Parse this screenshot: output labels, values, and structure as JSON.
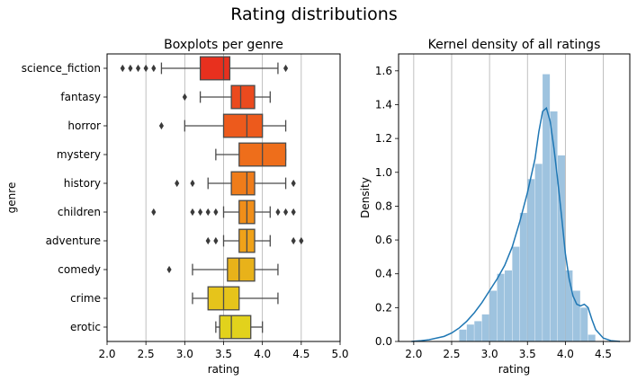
{
  "figure": {
    "title": "Rating distributions"
  },
  "chart_data": [
    {
      "type": "box",
      "title": "Boxplots per genre",
      "xlabel": "rating",
      "ylabel": "genre",
      "xlim": [
        2.0,
        5.0
      ],
      "xticks": [
        "2.0",
        "2.5",
        "3.0",
        "3.5",
        "4.0",
        "4.5",
        "5.0"
      ],
      "xtick_values": [
        2.0,
        2.5,
        3.0,
        3.5,
        4.0,
        4.5,
        5.0
      ],
      "grid": "vertical",
      "categories": [
        "science_fiction",
        "fantasy",
        "horror",
        "mystery",
        "history",
        "children",
        "adventure",
        "comedy",
        "crime",
        "erotic"
      ],
      "boxes": [
        {
          "genre": "science_fiction",
          "whislo": 2.7,
          "q1": 3.2,
          "med": 3.5,
          "q3": 3.58,
          "whishi": 4.2,
          "fliers": [
            2.2,
            2.3,
            2.4,
            2.5,
            2.6,
            4.3
          ],
          "color": "#e8301e"
        },
        {
          "genre": "fantasy",
          "whislo": 3.2,
          "q1": 3.6,
          "med": 3.72,
          "q3": 3.9,
          "whishi": 4.1,
          "fliers": [
            3.0
          ],
          "color": "#eb4a1e"
        },
        {
          "genre": "horror",
          "whislo": 3.0,
          "q1": 3.5,
          "med": 3.8,
          "q3": 4.0,
          "whishi": 4.3,
          "fliers": [
            2.7
          ],
          "color": "#ed5a1c"
        },
        {
          "genre": "mystery",
          "whislo": 3.4,
          "q1": 3.7,
          "med": 4.0,
          "q3": 4.3,
          "whishi": 4.3,
          "fliers": [],
          "color": "#ee6e1b"
        },
        {
          "genre": "history",
          "whislo": 3.3,
          "q1": 3.6,
          "med": 3.8,
          "q3": 3.9,
          "whishi": 4.3,
          "fliers": [
            2.9,
            3.1,
            4.4
          ],
          "color": "#ef7c1a"
        },
        {
          "genre": "children",
          "whislo": 3.5,
          "q1": 3.7,
          "med": 3.8,
          "q3": 3.9,
          "whishi": 4.1,
          "fliers": [
            2.6,
            3.1,
            3.2,
            3.3,
            3.4,
            4.2,
            4.3,
            4.4
          ],
          "color": "#f08e19"
        },
        {
          "genre": "adventure",
          "whislo": 3.5,
          "q1": 3.7,
          "med": 3.8,
          "q3": 3.9,
          "whishi": 4.1,
          "fliers": [
            3.3,
            3.4,
            4.4,
            4.5
          ],
          "color": "#f0a219"
        },
        {
          "genre": "comedy",
          "whislo": 3.1,
          "q1": 3.55,
          "med": 3.7,
          "q3": 3.9,
          "whishi": 4.2,
          "fliers": [
            2.8
          ],
          "color": "#e8b21a"
        },
        {
          "genre": "crime",
          "whislo": 3.1,
          "q1": 3.3,
          "med": 3.5,
          "q3": 3.7,
          "whishi": 4.2,
          "fliers": [],
          "color": "#e6c41b"
        },
        {
          "genre": "erotic",
          "whislo": 3.4,
          "q1": 3.45,
          "med": 3.6,
          "q3": 3.85,
          "whishi": 4.0,
          "fliers": [],
          "color": "#e2d21c"
        }
      ]
    },
    {
      "type": "histogram+kde",
      "title": "Kernel density of all ratings",
      "xlabel": "rating",
      "ylabel": "Density",
      "xlim": [
        1.8,
        4.85
      ],
      "ylim": [
        0,
        1.7
      ],
      "xticks": [
        "2.0",
        "2.5",
        "3.0",
        "3.5",
        "4.0",
        "4.5"
      ],
      "xtick_values": [
        2.0,
        2.5,
        3.0,
        3.5,
        4.0,
        4.5
      ],
      "yticks": [
        "0.0",
        "0.2",
        "0.4",
        "0.6",
        "0.8",
        "1.0",
        "1.2",
        "1.4",
        "1.6"
      ],
      "ytick_values": [
        0.0,
        0.2,
        0.4,
        0.6,
        0.8,
        1.0,
        1.2,
        1.4,
        1.6
      ],
      "grid": "vertical",
      "bar_color": "#9ec3df",
      "line_color": "#1f77b4",
      "bin_edges": [
        2.6,
        2.7,
        2.8,
        2.9,
        3.0,
        3.1,
        3.2,
        3.3,
        3.4,
        3.5,
        3.6,
        3.7,
        3.8,
        3.9,
        4.0,
        4.1,
        4.2,
        4.3,
        4.4
      ],
      "densities": [
        0.07,
        0.1,
        0.12,
        0.16,
        0.3,
        0.4,
        0.42,
        0.56,
        0.76,
        0.96,
        1.05,
        1.58,
        1.36,
        1.1,
        0.42,
        0.3,
        0.2,
        0.04
      ],
      "kde": {
        "x": [
          1.97,
          2.1,
          2.2,
          2.3,
          2.4,
          2.5,
          2.6,
          2.7,
          2.8,
          2.9,
          3.0,
          3.1,
          3.2,
          3.3,
          3.4,
          3.5,
          3.6,
          3.65,
          3.7,
          3.75,
          3.8,
          3.85,
          3.9,
          3.95,
          4.0,
          4.05,
          4.1,
          4.15,
          4.2,
          4.25,
          4.3,
          4.35,
          4.4,
          4.5,
          4.6,
          4.72
        ],
        "y": [
          0.0,
          0.005,
          0.01,
          0.02,
          0.03,
          0.05,
          0.08,
          0.12,
          0.17,
          0.23,
          0.3,
          0.37,
          0.45,
          0.56,
          0.71,
          0.88,
          1.08,
          1.24,
          1.36,
          1.38,
          1.3,
          1.14,
          0.95,
          0.74,
          0.52,
          0.37,
          0.27,
          0.22,
          0.21,
          0.22,
          0.2,
          0.13,
          0.07,
          0.02,
          0.005,
          0.0
        ]
      }
    }
  ]
}
